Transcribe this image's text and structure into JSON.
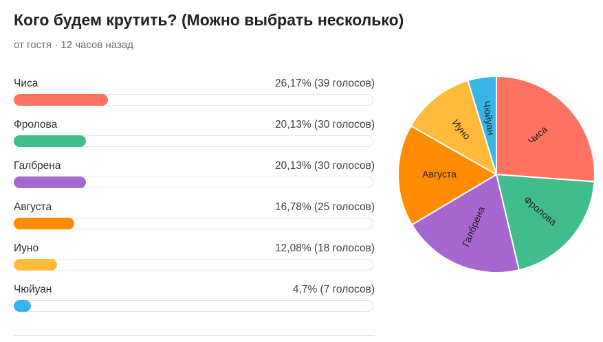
{
  "poll": {
    "title": "Кого будем крутить? (Можно выбрать несколько)",
    "meta": "от гостя · 12 часов назад"
  },
  "options": [
    {
      "label": "Чиса",
      "result": "26,17% (39 голосов)",
      "percent": 26.17,
      "votes": 39,
      "color": "#FF7262"
    },
    {
      "label": "Фролова",
      "result": "20,13% (30 голосов)",
      "percent": 20.13,
      "votes": 30,
      "color": "#41BC8D"
    },
    {
      "label": "Галбрена",
      "result": "20,13% (30 голосов)",
      "percent": 20.13,
      "votes": 30,
      "color": "#A767D1"
    },
    {
      "label": "Августа",
      "result": "16,78% (25 голосов)",
      "percent": 16.78,
      "votes": 25,
      "color": "#FF8B00"
    },
    {
      "label": "Иуно",
      "result": "12,08% (18 голосов)",
      "percent": 12.08,
      "votes": 18,
      "color": "#FFBA3A"
    },
    {
      "label": "Чюйуан",
      "result": "4,7% (7 голосов)",
      "percent": 4.7,
      "votes": 7,
      "color": "#35B6E6"
    }
  ],
  "chart_data": {
    "type": "pie",
    "categories": [
      "Чиса",
      "Фролова",
      "Галбрена",
      "Августа",
      "Иуно",
      "Чюйуан"
    ],
    "values": [
      39,
      30,
      30,
      25,
      18,
      7
    ],
    "colors": [
      "#FF7262",
      "#41BC8D",
      "#A767D1",
      "#FF8B00",
      "#FFBA3A",
      "#35B6E6"
    ]
  }
}
